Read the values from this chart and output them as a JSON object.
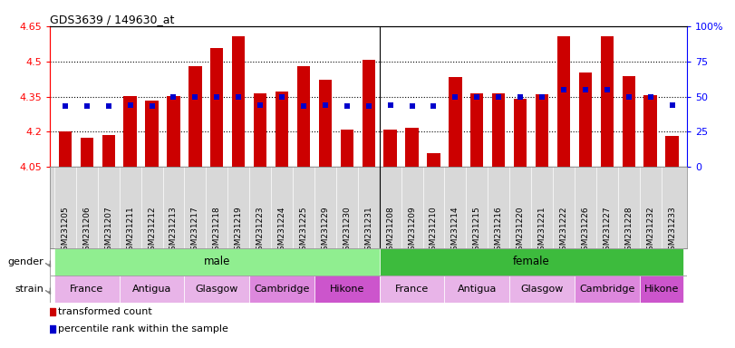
{
  "title": "GDS3639 / 149630_at",
  "samples": [
    "GSM231205",
    "GSM231206",
    "GSM231207",
    "GSM231211",
    "GSM231212",
    "GSM231213",
    "GSM231217",
    "GSM231218",
    "GSM231219",
    "GSM231223",
    "GSM231224",
    "GSM231225",
    "GSM231229",
    "GSM231230",
    "GSM231231",
    "GSM231208",
    "GSM231209",
    "GSM231210",
    "GSM231214",
    "GSM231215",
    "GSM231216",
    "GSM231220",
    "GSM231221",
    "GSM231222",
    "GSM231226",
    "GSM231227",
    "GSM231228",
    "GSM231232",
    "GSM231233"
  ],
  "bar_values": [
    4.202,
    4.172,
    4.185,
    4.352,
    4.332,
    4.352,
    4.478,
    4.558,
    4.608,
    4.365,
    4.37,
    4.478,
    4.422,
    4.21,
    4.505,
    4.21,
    4.218,
    4.108,
    4.432,
    4.362,
    4.362,
    4.34,
    4.358,
    4.608,
    4.452,
    4.608,
    4.438,
    4.355,
    4.183
  ],
  "percentile_values": [
    43,
    43,
    43,
    44,
    43,
    50,
    50,
    50,
    50,
    44,
    50,
    43,
    44,
    43,
    43,
    44,
    43,
    43,
    50,
    50,
    50,
    50,
    50,
    55,
    55,
    55,
    50,
    50,
    44
  ],
  "bar_color": "#cc0000",
  "percentile_color": "#0000cc",
  "ylim_left": [
    4.05,
    4.65
  ],
  "ylim_right": [
    0,
    100
  ],
  "yticks_left": [
    4.05,
    4.2,
    4.35,
    4.5,
    4.65
  ],
  "yticks_right": [
    0,
    25,
    50,
    75,
    100
  ],
  "ytick_labels_left": [
    "4.05",
    "4.2",
    "4.35",
    "4.5",
    "4.65"
  ],
  "ytick_labels_right": [
    "0",
    "25",
    "50",
    "75",
    "100%"
  ],
  "hlines": [
    4.2,
    4.35,
    4.5
  ],
  "gender_groups": [
    {
      "label": "male",
      "start": 0,
      "end": 14,
      "color": "#90ee90"
    },
    {
      "label": "female",
      "start": 15,
      "end": 28,
      "color": "#3dbb3d"
    }
  ],
  "strain_groups": [
    {
      "label": "France",
      "start": 0,
      "end": 2,
      "color": "#e8b4e8"
    },
    {
      "label": "Antigua",
      "start": 3,
      "end": 5,
      "color": "#e8b4e8"
    },
    {
      "label": "Glasgow",
      "start": 6,
      "end": 8,
      "color": "#e8b4e8"
    },
    {
      "label": "Cambridge",
      "start": 9,
      "end": 11,
      "color": "#dd88dd"
    },
    {
      "label": "Hikone",
      "start": 12,
      "end": 14,
      "color": "#cc55cc"
    },
    {
      "label": "France",
      "start": 15,
      "end": 17,
      "color": "#e8b4e8"
    },
    {
      "label": "Antigua",
      "start": 18,
      "end": 20,
      "color": "#e8b4e8"
    },
    {
      "label": "Glasgow",
      "start": 21,
      "end": 23,
      "color": "#e8b4e8"
    },
    {
      "label": "Cambridge",
      "start": 24,
      "end": 26,
      "color": "#dd88dd"
    },
    {
      "label": "Hikone",
      "start": 27,
      "end": 28,
      "color": "#cc55cc"
    }
  ],
  "legend_items": [
    {
      "label": "transformed count",
      "color": "#cc0000"
    },
    {
      "label": "percentile rank within the sample",
      "color": "#0000cc"
    }
  ],
  "base_value": 4.05,
  "bar_width": 0.6,
  "separator_x": 14.5,
  "xlim": [
    -0.7,
    28.7
  ],
  "fig_width": 8.11,
  "fig_height": 3.84,
  "fig_dpi": 100
}
